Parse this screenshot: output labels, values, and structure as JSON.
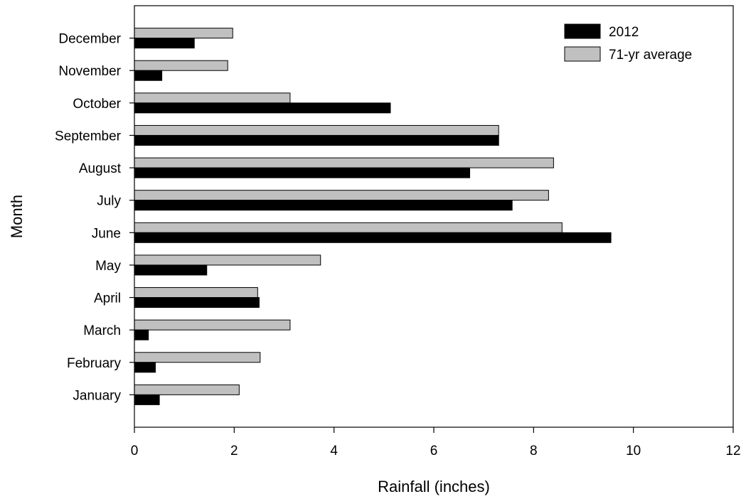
{
  "chart_data": {
    "type": "bar",
    "orientation": "horizontal",
    "xlabel": "Rainfall (inches)",
    "ylabel": "Month",
    "xlim": [
      0,
      12
    ],
    "x_ticks": [
      "0",
      "2",
      "4",
      "6",
      "8",
      "10",
      "12"
    ],
    "categories": [
      "January",
      "February",
      "March",
      "April",
      "May",
      "June",
      "July",
      "August",
      "September",
      "October",
      "November",
      "December"
    ],
    "series": [
      {
        "name": "2012",
        "color": "#000000",
        "values": [
          0.5,
          0.42,
          0.28,
          2.5,
          1.45,
          9.55,
          7.57,
          6.72,
          7.3,
          5.13,
          0.55,
          1.2
        ]
      },
      {
        "name": "71-yr average",
        "color": "#c0c0c0",
        "values": [
          2.1,
          2.52,
          3.12,
          2.47,
          3.73,
          8.57,
          8.3,
          8.4,
          7.3,
          3.12,
          1.87,
          1.97
        ]
      }
    ],
    "grid": false,
    "legend_position": "top-right"
  }
}
